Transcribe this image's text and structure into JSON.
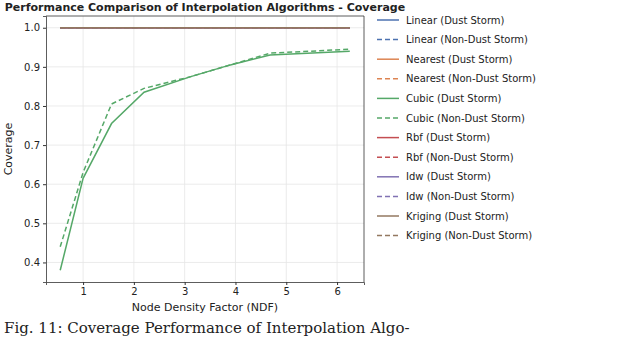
{
  "chart_data": {
    "type": "line",
    "title": "Performance Comparison of Interpolation Algorithms - Coverage",
    "x_label": "Node Density Factor (NDF)",
    "y_label": "Coverage",
    "caption": "Fig. 11: Coverage Performance of Interpolation Algo-",
    "x": [
      0.55,
      1.0,
      1.56,
      2.2,
      3.12,
      3.9,
      4.68,
      6.25
    ],
    "xlim": [
      0.27,
      6.53
    ],
    "xticks": [
      1,
      2,
      3,
      4,
      5,
      6
    ],
    "ylim": [
      0.35,
      1.03
    ],
    "yticks": [
      0.4,
      0.5,
      0.6,
      0.7,
      0.8,
      0.9,
      {
        "value": 1.0,
        "label": "1.0"
      }
    ],
    "grid": true,
    "legend": "outside-right",
    "series": [
      {
        "name": "Linear (Dust Storm)",
        "color": "#4c72b0",
        "line_style": "solid",
        "values": [
          1.0,
          1.0,
          1.0,
          1.0,
          1.0,
          1.0,
          1.0,
          1.0
        ]
      },
      {
        "name": "Linear (Non-Dust Storm)",
        "color": "#4c72b0",
        "line_style": "dashed",
        "values": [
          1.0,
          1.0,
          1.0,
          1.0,
          1.0,
          1.0,
          1.0,
          1.0
        ]
      },
      {
        "name": "Nearest (Dust Storm)",
        "color": "#dd8452",
        "line_style": "solid",
        "values": [
          1.0,
          1.0,
          1.0,
          1.0,
          1.0,
          1.0,
          1.0,
          1.0
        ]
      },
      {
        "name": "Nearest (Non-Dust Storm)",
        "color": "#dd8452",
        "line_style": "dashed",
        "values": [
          1.0,
          1.0,
          1.0,
          1.0,
          1.0,
          1.0,
          1.0,
          1.0
        ]
      },
      {
        "name": "Cubic (Dust Storm)",
        "color": "#55a868",
        "line_style": "solid",
        "values": [
          0.38,
          0.615,
          0.755,
          0.835,
          0.875,
          0.905,
          0.93,
          0.94
        ]
      },
      {
        "name": "Cubic (Non-Dust Storm)",
        "color": "#55a868",
        "line_style": "dashed",
        "values": [
          0.44,
          0.63,
          0.805,
          0.845,
          0.875,
          0.905,
          0.935,
          0.945
        ]
      },
      {
        "name": "Rbf (Dust Storm)",
        "color": "#c44e52",
        "line_style": "solid",
        "values": [
          1.0,
          1.0,
          1.0,
          1.0,
          1.0,
          1.0,
          1.0,
          1.0
        ]
      },
      {
        "name": "Rbf (Non-Dust Storm)",
        "color": "#c44e52",
        "line_style": "dashed",
        "values": [
          1.0,
          1.0,
          1.0,
          1.0,
          1.0,
          1.0,
          1.0,
          1.0
        ]
      },
      {
        "name": "Idw (Dust Storm)",
        "color": "#8172b3",
        "line_style": "solid",
        "values": [
          1.0,
          1.0,
          1.0,
          1.0,
          1.0,
          1.0,
          1.0,
          1.0
        ]
      },
      {
        "name": "Idw (Non-Dust Storm)",
        "color": "#8172b3",
        "line_style": "dashed",
        "values": [
          1.0,
          1.0,
          1.0,
          1.0,
          1.0,
          1.0,
          1.0,
          1.0
        ]
      },
      {
        "name": "Kriging (Dust Storm)",
        "color": "#937860",
        "line_style": "solid",
        "values": [
          1.0,
          1.0,
          1.0,
          1.0,
          1.0,
          1.0,
          1.0,
          1.0
        ]
      },
      {
        "name": "Kriging (Non-Dust Storm)",
        "color": "#937860",
        "line_style": "dashed",
        "values": [
          1.0,
          1.0,
          1.0,
          1.0,
          1.0,
          1.0,
          1.0,
          1.0
        ]
      }
    ]
  }
}
